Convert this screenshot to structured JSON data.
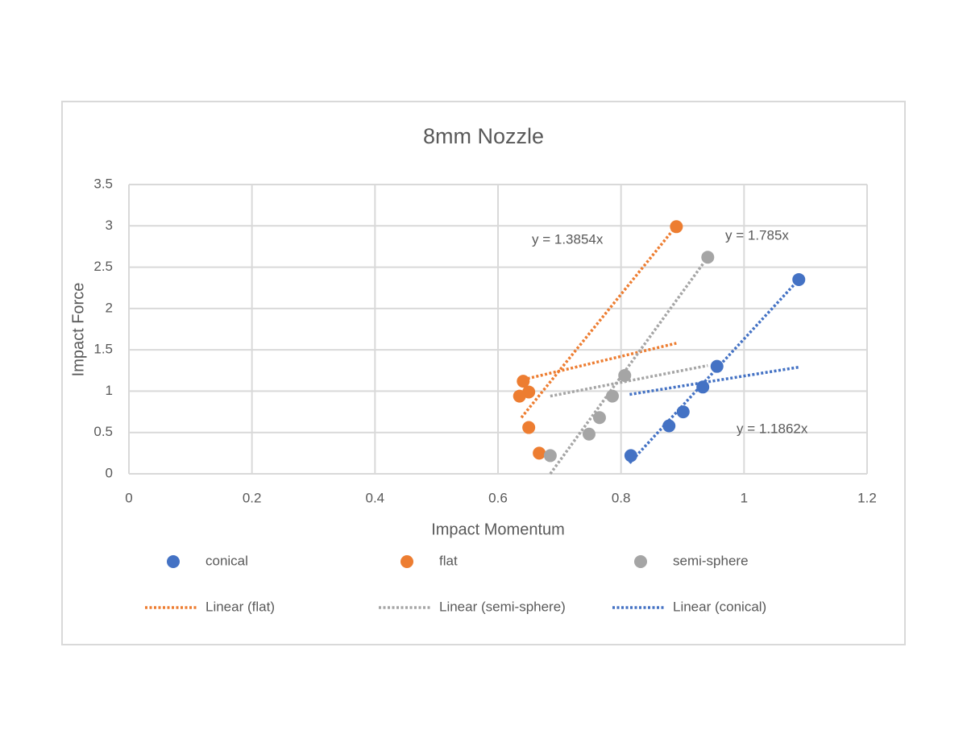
{
  "chart_data": {
    "type": "scatter",
    "title": "8mm Nozzle",
    "x_label": "Impact Momentum",
    "y_label": "Impact Force",
    "xlim": [
      0,
      1.2
    ],
    "xticks": [
      0,
      0.2,
      0.4,
      0.6,
      0.8,
      1,
      1.2
    ],
    "ylim": [
      0,
      3.5
    ],
    "yticks": [
      0,
      0.5,
      1,
      1.5,
      2,
      2.5,
      3,
      3.5
    ],
    "grid": true,
    "series": [
      {
        "name": "conical",
        "color": "#4472c4",
        "x": [
          0.816,
          0.878,
          0.901,
          0.933,
          0.956,
          1.089
        ],
        "y": [
          0.22,
          0.58,
          0.75,
          1.05,
          1.3,
          2.35
        ]
      },
      {
        "name": "flat",
        "color": "#ed7d31",
        "x": [
          0.641,
          0.65,
          0.635,
          0.65,
          0.667,
          0.89
        ],
        "y": [
          1.12,
          0.99,
          0.94,
          0.56,
          0.25,
          2.99
        ]
      },
      {
        "name": "semi-sphere",
        "color": "#a5a5a5",
        "x": [
          0.685,
          0.748,
          0.765,
          0.786,
          0.806,
          0.941
        ],
        "y": [
          0.22,
          0.48,
          0.68,
          0.94,
          1.19,
          2.62
        ]
      }
    ],
    "trendlines": [
      {
        "name": "Linear (flat)",
        "color": "#ed7d31",
        "segments": [
          {
            "x": [
              0.638,
              0.89
            ],
            "y": [
              0.68,
              3.0
            ]
          },
          {
            "x": [
              0.641,
              0.89
            ],
            "y": [
              1.14,
              1.58
            ]
          }
        ]
      },
      {
        "name": "Linear (semi-sphere)",
        "color": "#a5a5a5",
        "segments": [
          {
            "x": [
              0.685,
              0.941
            ],
            "y": [
              0,
              2.62
            ]
          },
          {
            "x": [
              0.685,
              0.941
            ],
            "y": [
              0.94,
              1.31
            ]
          }
        ]
      },
      {
        "name": "Linear (conical)",
        "color": "#4472c4",
        "segments": [
          {
            "x": [
              0.814,
              1.089
            ],
            "y": [
              0.13,
              2.35
            ]
          },
          {
            "x": [
              0.814,
              1.089
            ],
            "y": [
              0.96,
              1.29
            ]
          }
        ]
      }
    ],
    "annotations": [
      "y = 1.3854x",
      "y = 1.785x",
      "y = 1.1862x"
    ]
  }
}
